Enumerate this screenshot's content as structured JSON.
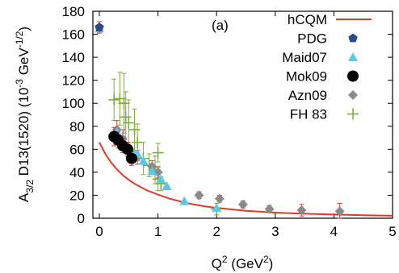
{
  "chart_data": {
    "type": "scatter",
    "panel_label": "(a)",
    "xlabel": {
      "base": "Q",
      "sup": "2",
      "rest": " (GeV",
      "sup2": "2",
      "end": ")"
    },
    "ylabel": {
      "a": "A",
      "sub": "3/2",
      "b": " D13(1520) (10",
      "sup": "-3",
      "c": " GeV",
      "sup2": "-1/2",
      "d": ")"
    },
    "xlim": [
      0,
      5
    ],
    "ylim": [
      0,
      180
    ],
    "xticks": [
      "0",
      "1",
      "2",
      "3",
      "4",
      "5"
    ],
    "yticks": [
      "0",
      "20",
      "40",
      "60",
      "80",
      "100",
      "120",
      "140",
      "160",
      "180"
    ],
    "grid": false,
    "legend_position": "top-right",
    "colors": {
      "hCQM": "#e03a2a",
      "PDG": "#2b4a8a",
      "Maid07": "#5bc8e8",
      "Mok09": "#000000",
      "Azn09": "#8a8a8a",
      "FH83": "#7fae3a",
      "error": "#e03a2a"
    },
    "series": [
      {
        "name": "hCQM",
        "style": "line",
        "x": [
          0.0,
          0.1,
          0.2,
          0.3,
          0.4,
          0.5,
          0.6,
          0.8,
          1.0,
          1.2,
          1.5,
          1.8,
          2.0,
          2.5,
          3.0,
          3.5,
          4.0,
          4.5,
          5.0
        ],
        "y": [
          66,
          56,
          48.5,
          42.5,
          37.5,
          33.5,
          30,
          24.5,
          20.5,
          17,
          13,
          10.3,
          9,
          6.5,
          4.9,
          3.9,
          3.2,
          2.6,
          2.2
        ]
      },
      {
        "name": "PDG",
        "style": "pentagon",
        "points": [
          {
            "x": 0.0,
            "y": 166,
            "err": 5
          }
        ]
      },
      {
        "name": "Maid07",
        "style": "triangle",
        "points": [
          {
            "x": 0.0,
            "y": 165,
            "err": 0
          },
          {
            "x": 0.3,
            "y": 75,
            "err": 0
          },
          {
            "x": 0.55,
            "y": 60,
            "err": 0
          },
          {
            "x": 0.65,
            "y": 56,
            "err": 0
          },
          {
            "x": 0.75,
            "y": 50,
            "err": 0
          },
          {
            "x": 0.9,
            "y": 41,
            "err": 0
          },
          {
            "x": 1.05,
            "y": 34,
            "err": 0
          },
          {
            "x": 1.15,
            "y": 28,
            "err": 0
          },
          {
            "x": 1.45,
            "y": 15,
            "err": 0
          },
          {
            "x": 2.0,
            "y": 9,
            "err": 0
          }
        ]
      },
      {
        "name": "Mok09",
        "style": "circle",
        "points": [
          {
            "x": 0.25,
            "y": 71,
            "err": 8
          },
          {
            "x": 0.32,
            "y": 68,
            "err": 7
          },
          {
            "x": 0.4,
            "y": 63,
            "err": 6
          },
          {
            "x": 0.48,
            "y": 60,
            "err": 6
          },
          {
            "x": 0.55,
            "y": 52,
            "err": 6
          }
        ]
      },
      {
        "name": "Azn09",
        "style": "diamond",
        "points": [
          {
            "x": 0.3,
            "y": 77,
            "err": 8
          },
          {
            "x": 0.4,
            "y": 69,
            "err": 8
          },
          {
            "x": 0.5,
            "y": 59,
            "err": 7
          },
          {
            "x": 0.65,
            "y": 53,
            "err": 6
          },
          {
            "x": 0.9,
            "y": 45,
            "err": 5
          },
          {
            "x": 1.0,
            "y": 40,
            "err": 5
          },
          {
            "x": 1.7,
            "y": 20,
            "err": 3
          },
          {
            "x": 2.05,
            "y": 17,
            "err": 3
          },
          {
            "x": 2.45,
            "y": 12,
            "err": 3
          },
          {
            "x": 2.9,
            "y": 8,
            "err": 3
          },
          {
            "x": 3.45,
            "y": 7,
            "err": 5
          },
          {
            "x": 4.1,
            "y": 6,
            "err": 7
          }
        ]
      },
      {
        "name": "FH 83",
        "style": "plus",
        "points": [
          {
            "x": 0.25,
            "y": 103,
            "err": 18
          },
          {
            "x": 0.35,
            "y": 104,
            "err": 23
          },
          {
            "x": 0.42,
            "y": 100,
            "err": 26
          },
          {
            "x": 0.45,
            "y": 88,
            "err": 22
          },
          {
            "x": 0.5,
            "y": 83,
            "err": 20
          },
          {
            "x": 0.6,
            "y": 77,
            "err": 18
          },
          {
            "x": 0.65,
            "y": 66,
            "err": 16
          },
          {
            "x": 0.75,
            "y": 52,
            "err": 14
          },
          {
            "x": 0.85,
            "y": 46,
            "err": 10
          },
          {
            "x": 0.95,
            "y": 42,
            "err": 12
          },
          {
            "x": 1.0,
            "y": 34,
            "err": 10
          },
          {
            "x": 1.0,
            "y": 57,
            "err": 8
          },
          {
            "x": 1.05,
            "y": 30,
            "err": 6
          },
          {
            "x": 2.0,
            "y": 8,
            "err": 5
          }
        ]
      }
    ]
  }
}
